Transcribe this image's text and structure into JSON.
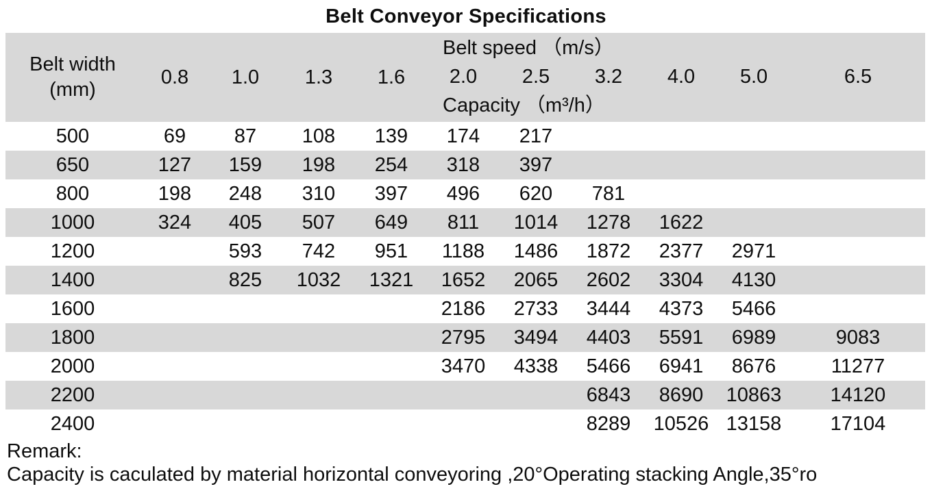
{
  "title": "Belt Conveyor Specifications",
  "chart_data": {
    "type": "table",
    "title": "Belt Conveyor Specifications",
    "header": {
      "row_label_line1": "Belt width",
      "row_label_line2": "(mm)",
      "group_label_top": "Belt speed （m/s）",
      "group_label_bottom": "Capacity （m³/h）",
      "speeds_left": [
        "0.8",
        "1.0",
        "1.3",
        "1.6"
      ],
      "speeds_right": [
        "2.0",
        "2.5",
        "3.2",
        "4.0",
        "5.0",
        "6.5"
      ],
      "all_speed_columns": [
        "0.8",
        "1.0",
        "1.3",
        "1.6",
        "2.0",
        "2.5",
        "3.2",
        "4.0",
        "5.0",
        "6.5"
      ]
    },
    "rows": [
      {
        "belt_width": "500",
        "capacities": [
          "69",
          "87",
          "108",
          "139",
          "174",
          "217",
          "",
          "",
          "",
          ""
        ]
      },
      {
        "belt_width": "650",
        "capacities": [
          "127",
          "159",
          "198",
          "254",
          "318",
          "397",
          "",
          "",
          "",
          ""
        ]
      },
      {
        "belt_width": "800",
        "capacities": [
          "198",
          "248",
          "310",
          "397",
          "496",
          "620",
          "781",
          "",
          "",
          ""
        ]
      },
      {
        "belt_width": "1000",
        "capacities": [
          "324",
          "405",
          "507",
          "649",
          "811",
          "1014",
          "1278",
          "1622",
          "",
          ""
        ]
      },
      {
        "belt_width": "1200",
        "capacities": [
          "",
          "593",
          "742",
          "951",
          "1188",
          "1486",
          "1872",
          "2377",
          "2971",
          ""
        ]
      },
      {
        "belt_width": "1400",
        "capacities": [
          "",
          "825",
          "1032",
          "1321",
          "1652",
          "2065",
          "2602",
          "3304",
          "4130",
          ""
        ]
      },
      {
        "belt_width": "1600",
        "capacities": [
          "",
          "",
          "",
          "",
          "2186",
          "2733",
          "3444",
          "4373",
          "5466",
          ""
        ]
      },
      {
        "belt_width": "1800",
        "capacities": [
          "",
          "",
          "",
          "",
          "2795",
          "3494",
          "4403",
          "5591",
          "6989",
          "9083"
        ]
      },
      {
        "belt_width": "2000",
        "capacities": [
          "",
          "",
          "",
          "",
          "3470",
          "4338",
          "5466",
          "6941",
          "8676",
          "11277"
        ]
      },
      {
        "belt_width": "2200",
        "capacities": [
          "",
          "",
          "",
          "",
          "",
          "",
          "6843",
          "8690",
          "10863",
          "14120"
        ]
      },
      {
        "belt_width": "2400",
        "capacities": [
          "",
          "",
          "",
          "",
          "",
          "",
          "8289",
          "10526",
          "13158",
          "17104"
        ]
      }
    ]
  },
  "remark": {
    "label": "Remark:",
    "line": "Capacity is caculated by material horizontal conveyoring ,20°Operating stacking Angle,35°ro"
  },
  "colors": {
    "stripe": "#d8d8d8",
    "background": "#ffffff",
    "text": "#0d0d0d"
  }
}
